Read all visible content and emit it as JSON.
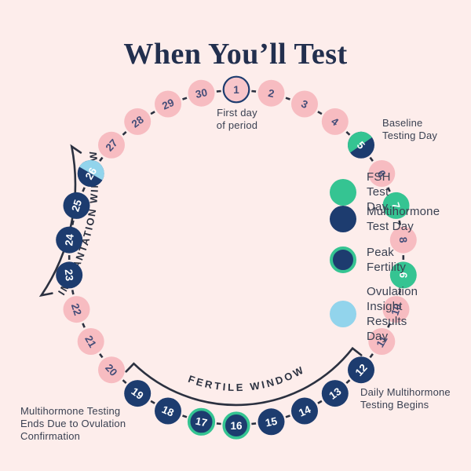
{
  "title": "When You’ll Test",
  "colors": {
    "background": "#fdedeb",
    "pink_day": "#f7bcc1",
    "first_day_fill": "#f8c6ca",
    "navy": "#1d3c6f",
    "green": "#35c492",
    "light_blue": "#92d4ec",
    "line": "#2b3140",
    "number_on_pink": "#454e79",
    "number_on_dark": "#ffffff",
    "title_color": "#222f4e",
    "text": "#3a4152"
  },
  "legend": {
    "items": [
      {
        "label": "FSH Test Day",
        "type": "fsh"
      },
      {
        "label": "Multihormone\nTest Day",
        "type": "multi"
      },
      {
        "label": "Peak Fertility",
        "type": "peak"
      },
      {
        "label": "Ovulation Insight\nResults Day",
        "type": "ovulation"
      }
    ]
  },
  "cycle": {
    "days": [
      {
        "n": 1,
        "type": "start"
      },
      {
        "n": 2,
        "type": "plain"
      },
      {
        "n": 3,
        "type": "plain"
      },
      {
        "n": 4,
        "type": "plain"
      },
      {
        "n": 5,
        "type": "baseline"
      },
      {
        "n": 6,
        "type": "plain"
      },
      {
        "n": 7,
        "type": "fsh"
      },
      {
        "n": 8,
        "type": "plain"
      },
      {
        "n": 9,
        "type": "fsh"
      },
      {
        "n": 10,
        "type": "plain"
      },
      {
        "n": 11,
        "type": "plain"
      },
      {
        "n": 12,
        "type": "multi"
      },
      {
        "n": 13,
        "type": "multi"
      },
      {
        "n": 14,
        "type": "multi"
      },
      {
        "n": 15,
        "type": "multi"
      },
      {
        "n": 16,
        "type": "peak"
      },
      {
        "n": 17,
        "type": "peak"
      },
      {
        "n": 18,
        "type": "multi"
      },
      {
        "n": 19,
        "type": "multi"
      },
      {
        "n": 20,
        "type": "plain"
      },
      {
        "n": 21,
        "type": "plain"
      },
      {
        "n": 22,
        "type": "plain"
      },
      {
        "n": 23,
        "type": "multi"
      },
      {
        "n": 24,
        "type": "multi"
      },
      {
        "n": 25,
        "type": "multi"
      },
      {
        "n": 26,
        "type": "ovulation"
      },
      {
        "n": 27,
        "type": "plain"
      },
      {
        "n": 28,
        "type": "plain"
      },
      {
        "n": 29,
        "type": "plain"
      },
      {
        "n": 30,
        "type": "plain"
      }
    ]
  },
  "arc_labels": {
    "fertile": "FERTILE WINDOW",
    "implantation": "IMPLANTATION WINDOW"
  },
  "annotations": {
    "first_day": "First day\nof period",
    "baseline": "Baseline\nTesting Day",
    "daily_begin": "Daily Multihormone\nTesting Begins",
    "testing_ends": "Multihormone Testing\nEnds Due to Ovulation\nConfirmation"
  }
}
